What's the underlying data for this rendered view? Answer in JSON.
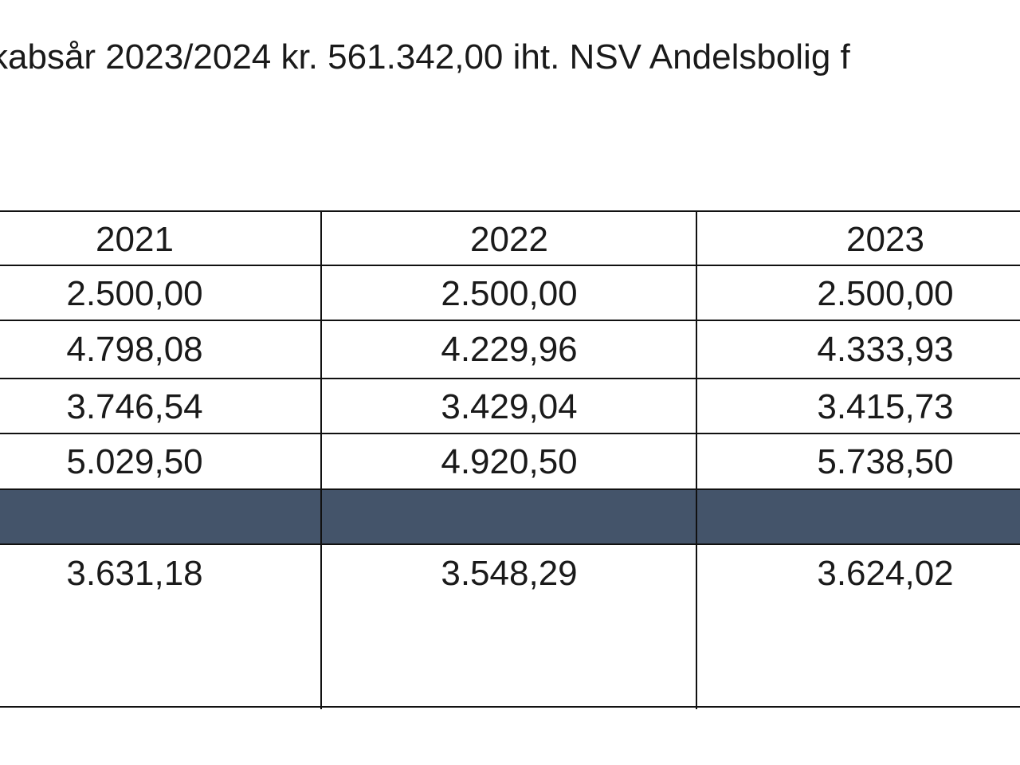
{
  "heading": "kabsår 2023/2024 kr. 561.342,00 iht. NSV Andelsbolig f",
  "table": {
    "header": [
      "2021",
      "2022",
      "2023"
    ],
    "rows": [
      [
        "2.500,00",
        "2.500,00",
        "2.500,00"
      ],
      [
        "4.798,08",
        "4.229,96",
        "4.333,93"
      ],
      [
        "3.746,54",
        "3.429,04",
        "3.415,73"
      ],
      [
        "5.029,50",
        "4.920,50",
        "5.738,50"
      ]
    ],
    "after_band_row": [
      "3.631,18",
      "3.548,29",
      "3.624,02"
    ]
  },
  "colors": {
    "band": "#44546a",
    "lines": "#111111",
    "text": "#1a1a1a"
  }
}
